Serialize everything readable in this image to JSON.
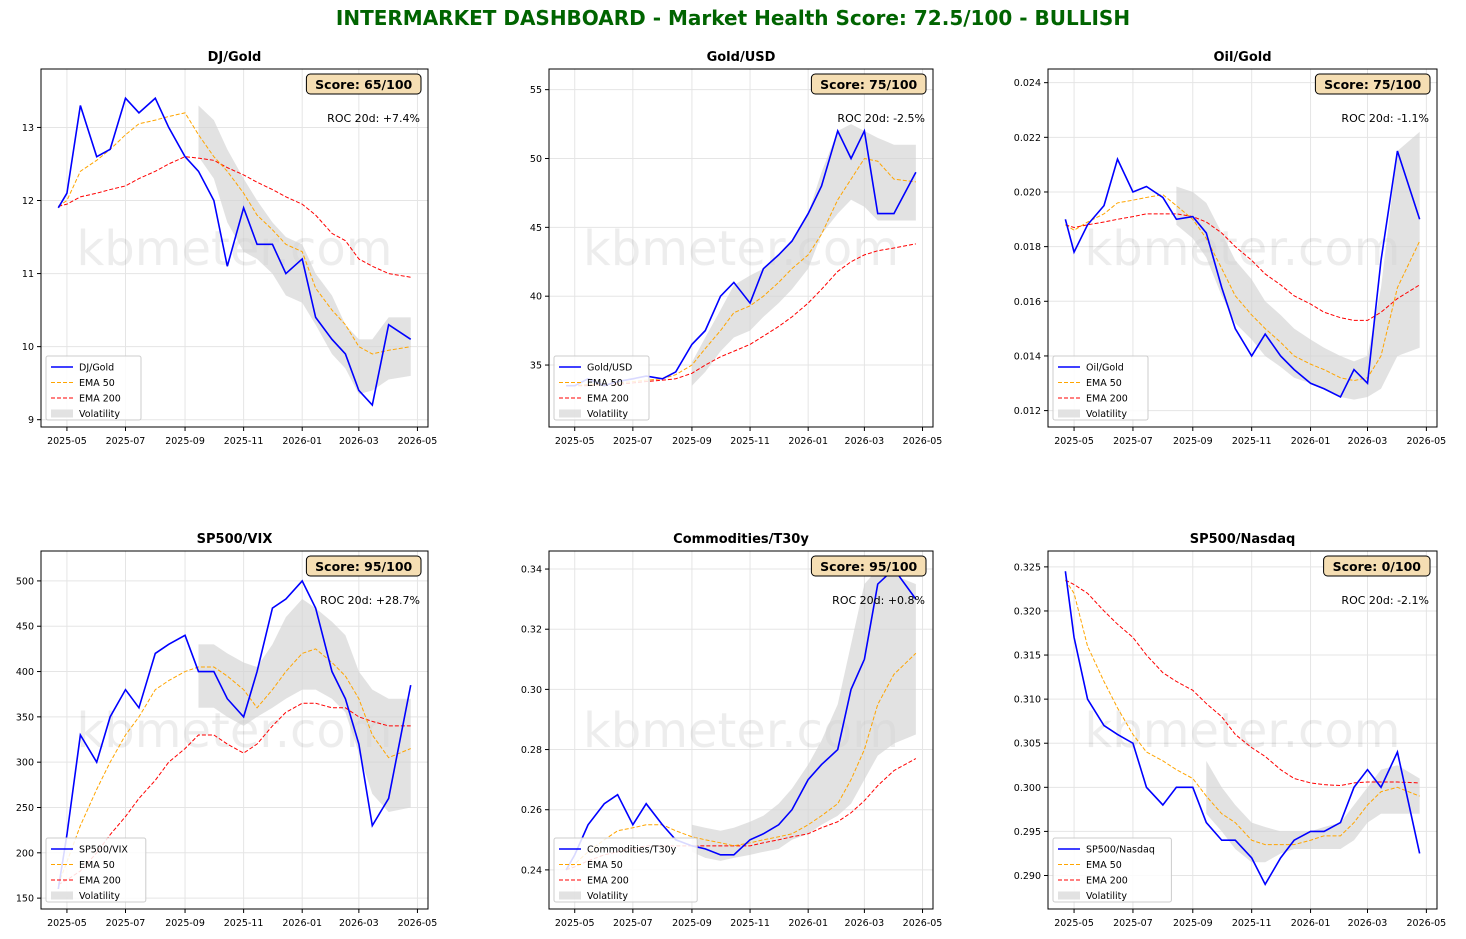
{
  "title": "INTERMARKET DASHBOARD - Market Health Score: 72.5/100 - BULLISH",
  "title_color": "#006400",
  "watermark": "kbmeter.com",
  "colors": {
    "price": "#0000ff",
    "ema50": "#ffa500",
    "ema200": "#ff0000",
    "volatility": "#d3d3d3",
    "score_box": "#f5deb3"
  },
  "chart_data": [
    {
      "type": "line",
      "title": "DJ/Gold",
      "score": "Score: 65/100",
      "roc": "ROC 20d: +7.4%",
      "legend": [
        "DJ/Gold",
        "EMA 50",
        "EMA 200",
        "Volatility"
      ],
      "legend_position": "lower-left",
      "grid": true,
      "x": [
        "2025-04-22",
        "2025-05-01",
        "2025-05-15",
        "2025-06-01",
        "2025-06-15",
        "2025-07-01",
        "2025-07-15",
        "2025-08-01",
        "2025-08-15",
        "2025-09-01",
        "2025-09-15",
        "2025-10-01",
        "2025-10-15",
        "2025-11-01",
        "2025-11-15",
        "2025-12-01",
        "2025-12-15",
        "2026-01-01",
        "2026-01-15",
        "2026-02-01",
        "2026-02-15",
        "2026-03-01",
        "2026-03-15",
        "2026-04-01",
        "2026-04-24"
      ],
      "xticks": [
        "2025-05",
        "2025-07",
        "2025-09",
        "2025-11",
        "2026-01",
        "2026-03",
        "2026-05"
      ],
      "ylim": [
        8.9,
        13.8
      ],
      "yticks": [
        9,
        10,
        11,
        12,
        13
      ],
      "price": [
        11.9,
        12.1,
        13.3,
        12.6,
        12.7,
        13.4,
        13.2,
        13.4,
        13.0,
        12.6,
        12.4,
        12.0,
        11.1,
        11.9,
        11.4,
        11.4,
        11.0,
        11.2,
        10.4,
        10.1,
        9.9,
        9.4,
        9.2,
        10.3,
        10.1
      ],
      "ema50": [
        11.92,
        12.0,
        12.4,
        12.55,
        12.7,
        12.9,
        13.05,
        13.1,
        13.15,
        13.2,
        12.9,
        12.6,
        12.4,
        12.1,
        11.8,
        11.6,
        11.4,
        11.3,
        10.8,
        10.5,
        10.3,
        10.0,
        9.9,
        9.95,
        10.0
      ],
      "ema200": [
        11.92,
        11.95,
        12.05,
        12.1,
        12.15,
        12.2,
        12.3,
        12.4,
        12.5,
        12.6,
        12.58,
        12.55,
        12.45,
        12.35,
        12.25,
        12.15,
        12.05,
        11.95,
        11.8,
        11.55,
        11.45,
        11.2,
        11.1,
        11.0,
        10.95
      ],
      "vol_upper": [
        null,
        null,
        null,
        null,
        null,
        null,
        null,
        null,
        null,
        null,
        13.3,
        13.1,
        12.7,
        12.3,
        12.0,
        11.7,
        11.5,
        11.4,
        11.0,
        10.7,
        10.3,
        10.1,
        10.1,
        10.4,
        10.4
      ],
      "vol_lower": [
        null,
        null,
        null,
        null,
        null,
        null,
        null,
        null,
        null,
        null,
        12.6,
        12.3,
        11.7,
        11.3,
        11.2,
        11.0,
        10.7,
        10.6,
        10.3,
        9.9,
        9.7,
        9.35,
        9.4,
        9.55,
        9.6
      ]
    },
    {
      "type": "line",
      "title": "Gold/USD",
      "score": "Score: 75/100",
      "roc": "ROC 20d: -2.5%",
      "legend": [
        "Gold/USD",
        "EMA 50",
        "EMA 200",
        "Volatility"
      ],
      "legend_position": "lower-left",
      "grid": true,
      "x": [
        "2025-04-22",
        "2025-05-01",
        "2025-05-15",
        "2025-06-01",
        "2025-06-15",
        "2025-07-01",
        "2025-07-15",
        "2025-08-01",
        "2025-08-15",
        "2025-09-01",
        "2025-09-15",
        "2025-10-01",
        "2025-10-15",
        "2025-11-01",
        "2025-11-15",
        "2025-12-01",
        "2025-12-15",
        "2026-01-01",
        "2026-01-15",
        "2026-02-01",
        "2026-02-15",
        "2026-03-01",
        "2026-03-15",
        "2026-04-01",
        "2026-04-24"
      ],
      "xticks": [
        "2025-05",
        "2025-07",
        "2025-09",
        "2025-11",
        "2026-01",
        "2026-03",
        "2026-05"
      ],
      "ylim": [
        30.5,
        56.5
      ],
      "yticks": [
        35,
        40,
        45,
        50,
        55
      ],
      "price": [
        33.5,
        33.5,
        34,
        33.5,
        33.8,
        34,
        34.2,
        34,
        34.5,
        36.5,
        37.5,
        40,
        41,
        39.5,
        42,
        43,
        44,
        46,
        48,
        52,
        50,
        52,
        46,
        46,
        49
      ],
      "ema50": [
        33.5,
        33.5,
        33.6,
        33.6,
        33.7,
        33.8,
        33.9,
        34,
        34.3,
        35,
        36.2,
        37.5,
        38.8,
        39.3,
        40,
        41,
        42,
        43,
        44.5,
        47,
        48.5,
        50,
        49.8,
        48.5,
        48.3
      ],
      "ema200": [
        33.5,
        33.5,
        33.5,
        33.6,
        33.6,
        33.7,
        33.8,
        33.9,
        34,
        34.4,
        35,
        35.6,
        36,
        36.5,
        37.1,
        37.8,
        38.5,
        39.5,
        40.5,
        41.8,
        42.5,
        43,
        43.3,
        43.5,
        43.8
      ],
      "vol_upper": [
        null,
        null,
        null,
        null,
        null,
        null,
        null,
        null,
        null,
        35.2,
        37,
        39,
        40.8,
        41.5,
        42,
        43,
        44,
        46,
        49,
        52,
        52.5,
        52,
        51.5,
        51,
        51
      ],
      "vol_lower": [
        null,
        null,
        null,
        null,
        null,
        null,
        null,
        null,
        null,
        33.5,
        34.5,
        36,
        37,
        37.5,
        38.5,
        39.5,
        40.5,
        42,
        44.5,
        46,
        47,
        46.5,
        45.5,
        45.5,
        45.5
      ]
    },
    {
      "type": "line",
      "title": "Oil/Gold",
      "score": "Score: 75/100",
      "roc": "ROC 20d: -1.1%",
      "legend": [
        "Oil/Gold",
        "EMA 50",
        "EMA 200",
        "Volatility"
      ],
      "legend_position": "lower-left",
      "grid": true,
      "x": [
        "2025-04-22",
        "2025-05-01",
        "2025-05-15",
        "2025-06-01",
        "2025-06-15",
        "2025-07-01",
        "2025-07-15",
        "2025-08-01",
        "2025-08-15",
        "2025-09-01",
        "2025-09-15",
        "2025-10-01",
        "2025-10-15",
        "2025-11-01",
        "2025-11-15",
        "2025-12-01",
        "2025-12-15",
        "2026-01-01",
        "2026-01-15",
        "2026-02-01",
        "2026-02-15",
        "2026-03-01",
        "2026-03-15",
        "2026-04-01",
        "2026-04-24"
      ],
      "xticks": [
        "2025-05",
        "2025-07",
        "2025-09",
        "2025-11",
        "2026-01",
        "2026-03",
        "2026-05"
      ],
      "ylim": [
        0.0114,
        0.0245
      ],
      "yticks": [
        0.012,
        0.014,
        0.016,
        0.018,
        0.02,
        0.022,
        0.024
      ],
      "price": [
        0.019,
        0.0178,
        0.0188,
        0.0195,
        0.0212,
        0.02,
        0.0202,
        0.0198,
        0.019,
        0.0191,
        0.0185,
        0.0165,
        0.015,
        0.014,
        0.0148,
        0.014,
        0.0135,
        0.013,
        0.0128,
        0.0125,
        0.0135,
        0.013,
        0.0175,
        0.0215,
        0.019
      ],
      "ema50": [
        0.0188,
        0.0186,
        0.0189,
        0.0192,
        0.0196,
        0.0197,
        0.0198,
        0.0199,
        0.0195,
        0.019,
        0.0183,
        0.0172,
        0.0162,
        0.0155,
        0.015,
        0.0145,
        0.014,
        0.0137,
        0.0135,
        0.0132,
        0.0131,
        0.0132,
        0.014,
        0.0165,
        0.0182
      ],
      "ema200": [
        0.0188,
        0.0187,
        0.0188,
        0.0189,
        0.019,
        0.0191,
        0.0192,
        0.0192,
        0.0192,
        0.0191,
        0.0189,
        0.0185,
        0.018,
        0.0175,
        0.017,
        0.0166,
        0.0162,
        0.0159,
        0.0156,
        0.0154,
        0.0153,
        0.0153,
        0.0156,
        0.0161,
        0.0166
      ],
      "vol_upper": [
        null,
        null,
        null,
        null,
        null,
        null,
        null,
        null,
        0.0202,
        0.02,
        0.0196,
        0.0185,
        0.0175,
        0.0168,
        0.016,
        0.0155,
        0.015,
        0.0146,
        0.0143,
        0.014,
        0.0138,
        0.014,
        0.0165,
        0.0215,
        0.0222
      ],
      "vol_lower": [
        null,
        null,
        null,
        null,
        null,
        null,
        null,
        null,
        0.0188,
        0.0183,
        0.0176,
        0.0162,
        0.0152,
        0.0146,
        0.014,
        0.0136,
        0.0132,
        0.013,
        0.0128,
        0.0125,
        0.0124,
        0.0125,
        0.0128,
        0.014,
        0.0143
      ]
    },
    {
      "type": "line",
      "title": "SP500/VIX",
      "score": "Score: 95/100",
      "roc": "ROC 20d: +28.7%",
      "legend": [
        "SP500/VIX",
        "EMA 50",
        "EMA 200",
        "Volatility"
      ],
      "legend_position": "lower-left",
      "grid": true,
      "x": [
        "2025-04-22",
        "2025-05-01",
        "2025-05-15",
        "2025-06-01",
        "2025-06-15",
        "2025-07-01",
        "2025-07-15",
        "2025-08-01",
        "2025-08-15",
        "2025-09-01",
        "2025-09-15",
        "2025-10-01",
        "2025-10-15",
        "2025-11-01",
        "2025-11-15",
        "2025-12-01",
        "2025-12-15",
        "2026-01-01",
        "2026-01-15",
        "2026-02-01",
        "2026-02-15",
        "2026-03-01",
        "2026-03-15",
        "2026-04-01",
        "2026-04-24"
      ],
      "xticks": [
        "2025-05",
        "2025-07",
        "2025-09",
        "2025-11",
        "2026-01",
        "2026-03",
        "2026-05"
      ],
      "ylim": [
        138,
        533
      ],
      "yticks": [
        150,
        200,
        250,
        300,
        350,
        400,
        450,
        500
      ],
      "price": [
        160,
        220,
        330,
        300,
        350,
        380,
        360,
        420,
        430,
        440,
        400,
        400,
        370,
        350,
        400,
        470,
        480,
        500,
        470,
        400,
        370,
        320,
        230,
        260,
        385
      ],
      "ema50": [
        165,
        190,
        230,
        270,
        300,
        330,
        350,
        380,
        390,
        400,
        405,
        405,
        395,
        380,
        360,
        380,
        400,
        420,
        425,
        410,
        395,
        370,
        330,
        305,
        315
      ],
      "ema200": [
        165,
        170,
        180,
        200,
        220,
        240,
        260,
        280,
        300,
        315,
        330,
        330,
        320,
        310,
        320,
        340,
        355,
        365,
        365,
        360,
        360,
        350,
        345,
        340,
        340
      ],
      "vol_upper": [
        null,
        null,
        null,
        null,
        null,
        null,
        null,
        null,
        null,
        null,
        430,
        430,
        420,
        410,
        405,
        430,
        460,
        480,
        470,
        455,
        440,
        400,
        380,
        370,
        370
      ],
      "vol_lower": [
        null,
        null,
        null,
        null,
        null,
        null,
        null,
        null,
        null,
        null,
        360,
        360,
        350,
        340,
        350,
        360,
        370,
        380,
        380,
        370,
        355,
        310,
        265,
        245,
        250
      ]
    },
    {
      "type": "line",
      "title": "Commodities/T30y",
      "score": "Score: 95/100",
      "roc": "ROC 20d: +0.8%",
      "legend": [
        "Commodities/T30y",
        "EMA 50",
        "EMA 200",
        "Volatility"
      ],
      "legend_position": "lower-left",
      "grid": true,
      "x": [
        "2025-04-22",
        "2025-05-01",
        "2025-05-15",
        "2025-06-01",
        "2025-06-15",
        "2025-07-01",
        "2025-07-15",
        "2025-08-01",
        "2025-08-15",
        "2025-09-01",
        "2025-09-15",
        "2025-10-01",
        "2025-10-15",
        "2025-11-01",
        "2025-11-15",
        "2025-12-01",
        "2025-12-15",
        "2026-01-01",
        "2026-01-15",
        "2026-02-01",
        "2026-02-15",
        "2026-03-01",
        "2026-03-15",
        "2026-04-01",
        "2026-04-24"
      ],
      "xticks": [
        "2025-05",
        "2025-07",
        "2025-09",
        "2025-11",
        "2026-01",
        "2026-03",
        "2026-05"
      ],
      "ylim": [
        0.227,
        0.346
      ],
      "yticks": [
        0.24,
        0.26,
        0.28,
        0.3,
        0.32,
        0.34
      ],
      "price": [
        0.24,
        0.245,
        0.255,
        0.262,
        0.265,
        0.255,
        0.262,
        0.255,
        0.25,
        0.248,
        0.247,
        0.245,
        0.245,
        0.25,
        0.252,
        0.255,
        0.26,
        0.27,
        0.275,
        0.28,
        0.3,
        0.31,
        0.335,
        0.34,
        0.33
      ],
      "ema50": [
        0.24,
        0.242,
        0.246,
        0.25,
        0.253,
        0.254,
        0.255,
        0.255,
        0.253,
        0.251,
        0.25,
        0.249,
        0.248,
        0.249,
        0.25,
        0.251,
        0.252,
        0.255,
        0.258,
        0.262,
        0.27,
        0.28,
        0.295,
        0.305,
        0.312
      ],
      "ema200": [
        0.24,
        0.241,
        0.243,
        0.245,
        0.246,
        0.247,
        0.248,
        0.248,
        0.248,
        0.248,
        0.248,
        0.248,
        0.248,
        0.248,
        0.249,
        0.25,
        0.251,
        0.252,
        0.254,
        0.256,
        0.259,
        0.263,
        0.268,
        0.273,
        0.277
      ],
      "vol_upper": [
        null,
        null,
        null,
        null,
        null,
        null,
        null,
        null,
        null,
        0.255,
        0.254,
        0.253,
        0.254,
        0.256,
        0.258,
        0.262,
        0.267,
        0.275,
        0.283,
        0.295,
        0.315,
        0.335,
        0.34,
        0.338,
        0.335
      ],
      "vol_lower": [
        null,
        null,
        null,
        null,
        null,
        null,
        null,
        null,
        null,
        0.246,
        0.244,
        0.243,
        0.244,
        0.245,
        0.246,
        0.247,
        0.25,
        0.252,
        0.255,
        0.258,
        0.262,
        0.27,
        0.278,
        0.282,
        0.285
      ]
    },
    {
      "type": "line",
      "title": "SP500/Nasdaq",
      "score": "Score: 0/100",
      "roc": "ROC 20d: -2.1%",
      "legend": [
        "SP500/Nasdaq",
        "EMA 50",
        "EMA 200",
        "Volatility"
      ],
      "legend_position": "lower-left",
      "grid": true,
      "x": [
        "2025-04-22",
        "2025-05-01",
        "2025-05-15",
        "2025-06-01",
        "2025-06-15",
        "2025-07-01",
        "2025-07-15",
        "2025-08-01",
        "2025-08-15",
        "2025-09-01",
        "2025-09-15",
        "2025-10-01",
        "2025-10-15",
        "2025-11-01",
        "2025-11-15",
        "2025-12-01",
        "2025-12-15",
        "2026-01-01",
        "2026-01-15",
        "2026-02-01",
        "2026-02-15",
        "2026-03-01",
        "2026-03-15",
        "2026-04-01",
        "2026-04-24"
      ],
      "xticks": [
        "2025-05",
        "2025-07",
        "2025-09",
        "2025-11",
        "2026-01",
        "2026-03",
        "2026-05"
      ],
      "ylim": [
        0.2862,
        0.3268
      ],
      "yticks": [
        0.29,
        0.295,
        0.3,
        0.305,
        0.31,
        0.315,
        0.32,
        0.325
      ],
      "price": [
        0.3245,
        0.317,
        0.31,
        0.307,
        0.306,
        0.305,
        0.3,
        0.298,
        0.3,
        0.3,
        0.296,
        0.294,
        0.294,
        0.292,
        0.289,
        0.292,
        0.294,
        0.295,
        0.295,
        0.296,
        0.3,
        0.302,
        0.3,
        0.304,
        0.2925
      ],
      "ema50": [
        0.3235,
        0.322,
        0.316,
        0.312,
        0.309,
        0.306,
        0.304,
        0.303,
        0.302,
        0.301,
        0.299,
        0.297,
        0.296,
        0.294,
        0.2935,
        0.2935,
        0.2935,
        0.294,
        0.2945,
        0.2945,
        0.296,
        0.298,
        0.2995,
        0.3,
        0.299
      ],
      "ema200": [
        0.3235,
        0.323,
        0.322,
        0.32,
        0.3185,
        0.317,
        0.315,
        0.313,
        0.312,
        0.311,
        0.3095,
        0.308,
        0.306,
        0.3045,
        0.3035,
        0.302,
        0.301,
        0.3005,
        0.3003,
        0.3002,
        0.3005,
        0.3006,
        0.3006,
        0.3006,
        0.3005
      ],
      "vol_upper": [
        null,
        null,
        null,
        null,
        null,
        null,
        null,
        null,
        null,
        null,
        0.303,
        0.3,
        0.298,
        0.296,
        0.2955,
        0.295,
        0.295,
        0.295,
        0.2955,
        0.296,
        0.298,
        0.3,
        0.302,
        0.3025,
        0.301
      ],
      "vol_lower": [
        null,
        null,
        null,
        null,
        null,
        null,
        null,
        null,
        null,
        null,
        0.297,
        0.295,
        0.293,
        0.2915,
        0.2915,
        0.2925,
        0.293,
        0.293,
        0.293,
        0.293,
        0.294,
        0.296,
        0.297,
        0.297,
        0.297
      ]
    }
  ]
}
